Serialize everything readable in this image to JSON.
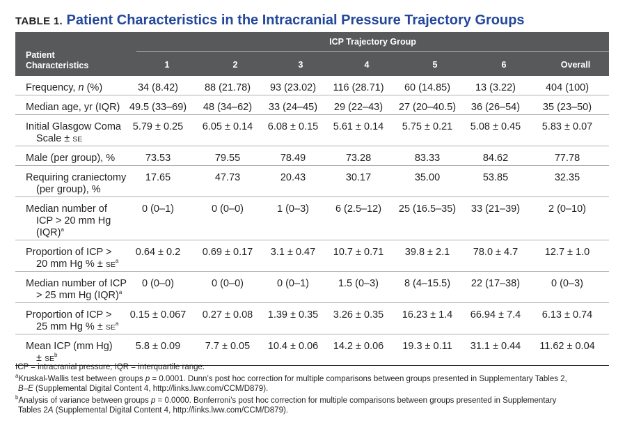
{
  "title": {
    "label": "TABLE 1.",
    "text": "Patient Characteristics in the Intracranial Pressure Trajectory Groups"
  },
  "header": {
    "row_header_line1": "Patient",
    "row_header_line2": "Characteristics",
    "group_label": "ICP Trajectory Group",
    "columns": [
      "1",
      "2",
      "3",
      "4",
      "5",
      "6",
      "Overall"
    ]
  },
  "rows": [
    {
      "label_lines": [
        "Frequency, n (%)"
      ],
      "values": [
        "34 (8.42)",
        "88 (21.78)",
        "93 (23.02)",
        "116 (28.71)",
        "60 (14.85)",
        "13 (3.22)",
        "404 (100)"
      ]
    },
    {
      "label_lines": [
        "Median age, yr (IQR)"
      ],
      "values": [
        "49.5 (33–69)",
        "48 (34–62)",
        "33 (24–45)",
        "29 (22–43)",
        "27 (20–40.5)",
        "36 (26–54)",
        "35 (23–50)"
      ]
    },
    {
      "label_lines": [
        "Initial Glasgow Coma",
        "Scale ± SE"
      ],
      "values": [
        "5.79 ± 0.25",
        "6.05 ± 0.14",
        "6.08 ± 0.15",
        "5.61 ± 0.14",
        "5.75 ± 0.21",
        "5.08 ± 0.45",
        "5.83 ± 0.07"
      ]
    },
    {
      "label_lines": [
        "Male (per group), %"
      ],
      "values": [
        "73.53",
        "79.55",
        "78.49",
        "73.28",
        "83.33",
        "84.62",
        "77.78"
      ]
    },
    {
      "label_lines": [
        "Requiring craniectomy",
        "(per group), %"
      ],
      "values": [
        "17.65",
        "47.73",
        "20.43",
        "30.17",
        "35.00",
        "53.85",
        "32.35"
      ]
    },
    {
      "label_lines": [
        "Median number of",
        "ICP > 20 mm Hg",
        "(IQR)a"
      ],
      "values": [
        "0 (0–1)",
        "0 (0–0)",
        "1 (0–3)",
        "6 (2.5–12)",
        "25 (16.5–35)",
        "33 (21–39)",
        "2 (0–10)"
      ]
    },
    {
      "label_lines": [
        "Proportion of ICP >",
        "20 mm Hg % ± SEa"
      ],
      "values": [
        "0.64 ± 0.2",
        "0.69 ± 0.17",
        "3.1 ± 0.47",
        "10.7 ± 0.71",
        "39.8 ± 2.1",
        "78.0 ± 4.7",
        "12.7 ± 1.0"
      ]
    },
    {
      "label_lines": [
        "Median number of ICP",
        "> 25 mm Hg (IQR)a"
      ],
      "values": [
        "0 (0–0)",
        "0 (0–0)",
        "0 (0–1)",
        "1.5 (0–3)",
        "8 (4–15.5)",
        "22 (17–38)",
        "0 (0–3)"
      ]
    },
    {
      "label_lines": [
        "Proportion of ICP >",
        "25 mm Hg % ± SEa"
      ],
      "values": [
        "0.15 ± 0.067",
        "0.27 ± 0.08",
        "1.39 ± 0.35",
        "3.26 ± 0.35",
        "16.23 ± 1.4",
        "66.94 ± 7.4",
        "6.13 ± 0.74"
      ]
    },
    {
      "label_lines": [
        "Mean ICP (mm Hg)",
        "± SEb"
      ],
      "values": [
        "5.8 ± 0.09",
        "7.7 ± 0.05",
        "10.4 ± 0.06",
        "14.2 ± 0.06",
        "19.3 ± 0.11",
        "31.1 ± 0.44",
        "11.62 ± 0.04"
      ]
    }
  ],
  "footnotes": {
    "abbrev": "ICP = intracranial pressure, IQR = interquartile range.",
    "a_line1": "aKruskal-Wallis test between groups p = 0.0001. Dunn’s post hoc correction for multiple comparisons between groups presented in Supplementary Tables 2,",
    "a_line2": "B–E (Supplemental Digital Content 4, http://links.lww.com/CCM/D879).",
    "b_line1": "bAnalysis of variance between groups p = 0.0000. Bonferroni’s post hoc correction for multiple comparisons between groups presented in Supplementary",
    "b_line2": "Tables 2A (Supplemental Digital Content 4, http://links.lww.com/CCM/D879)."
  }
}
